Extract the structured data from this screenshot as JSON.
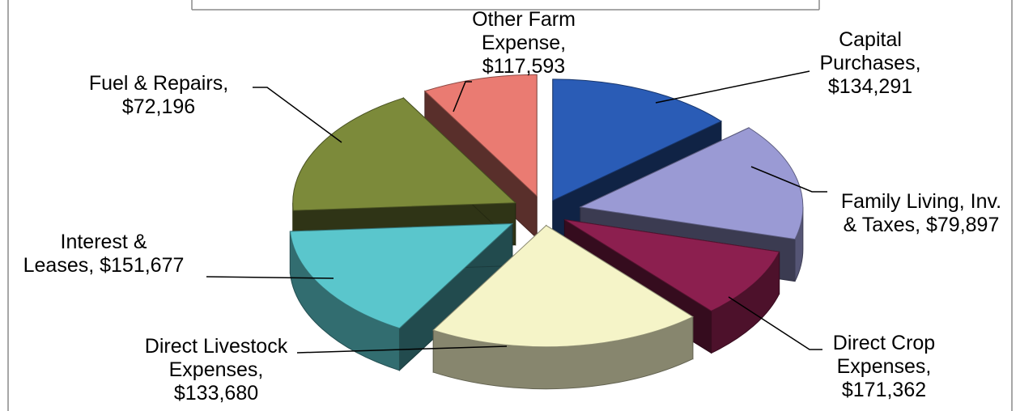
{
  "chart_data": {
    "type": "pie",
    "labels": [
      "Other Farm Expense",
      "Capital Purchases",
      "Family Living, Inv. & Taxes",
      "Direct Crop Expenses",
      "Direct Livestock Expenses",
      "Interest & Leases",
      "Fuel & Repairs"
    ],
    "values": [
      117593,
      134291,
      79897,
      171362,
      133680,
      151677,
      72196
    ],
    "colors": [
      "#2a5cb6",
      "#9a9ad4",
      "#8c1f4f",
      "#f5f4c8",
      "#5ac6cc",
      "#7c8a3a",
      "#ea7b72"
    ],
    "exploded_3d": true,
    "data_labels": [
      {
        "lines": [
          "Other Farm",
          "Expense,",
          "$117,593"
        ]
      },
      {
        "lines": [
          "Capital",
          "Purchases,",
          "$134,291"
        ]
      },
      {
        "lines": [
          "Family Living, Inv.",
          "& Taxes, $79,897"
        ]
      },
      {
        "lines": [
          "Direct Crop",
          "Expenses,",
          "$171,362"
        ]
      },
      {
        "lines": [
          "Direct Livestock",
          "Expenses,",
          "$133,680"
        ]
      },
      {
        "lines": [
          "Interest &",
          "Leases, $151,677"
        ]
      },
      {
        "lines": [
          "Fuel & Repairs,",
          "$72,196"
        ]
      }
    ]
  }
}
